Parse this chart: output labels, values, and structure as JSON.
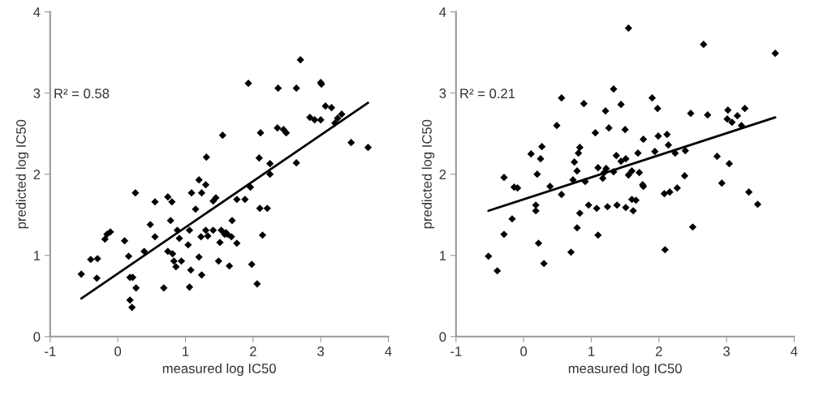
{
  "chart_data": [
    {
      "type": "scatter",
      "xlabel": "measured log IC50",
      "ylabel": "predicted log IC50",
      "xlim": [
        -1,
        4
      ],
      "ylim": [
        0,
        4
      ],
      "xticks": [
        -1,
        0,
        1,
        2,
        3,
        4
      ],
      "yticks": [
        0,
        1,
        2,
        3,
        4
      ],
      "grid": false,
      "annotations": [
        "R² = 0.58"
      ],
      "series": [
        {
          "marker": "diamond",
          "color": "#000000",
          "x": [
            -0.54,
            -0.4,
            -0.3,
            -0.31,
            -0.19,
            -0.16,
            -0.11,
            0.1,
            0.16,
            0.18,
            0.22,
            0.18,
            0.21,
            0.26,
            0.27,
            0.39,
            0.48,
            0.55,
            0.55,
            0.68,
            0.74,
            0.74,
            0.78,
            0.8,
            0.81,
            0.83,
            0.86,
            0.88,
            0.91,
            0.94,
            1.04,
            1.06,
            1.06,
            1.08,
            1.09,
            1.15,
            1.2,
            1.2,
            1.23,
            1.24,
            1.24,
            1.3,
            1.3,
            1.33,
            1.41,
            1.41,
            1.45,
            1.49,
            1.51,
            1.53,
            1.58,
            1.6,
            1.62,
            1.65,
            1.68,
            1.69,
            1.76,
            1.76,
            1.88,
            1.96,
            1.98,
            2.06,
            2.14,
            2.1,
            2.21,
            1.93,
            1.55,
            1.31,
            2.09,
            2.11,
            2.25,
            2.25,
            2.36,
            2.45,
            2.49,
            2.37,
            2.64,
            2.7,
            2.64,
            2.84,
            2.91,
            3.0,
            3.0,
            3.01,
            3.07,
            3.16,
            3.21,
            3.25,
            3.31,
            3.45,
            3.7
          ],
          "values": [
            0.77,
            0.95,
            0.96,
            0.72,
            1.2,
            1.26,
            1.29,
            1.18,
            0.99,
            0.73,
            0.73,
            0.45,
            0.36,
            1.77,
            0.6,
            1.05,
            1.38,
            1.66,
            1.23,
            0.6,
            1.72,
            1.05,
            1.43,
            1.66,
            1.02,
            0.93,
            0.86,
            1.31,
            1.21,
            0.93,
            1.13,
            1.31,
            0.61,
            0.82,
            1.77,
            1.57,
            0.98,
            1.93,
            1.23,
            1.77,
            0.76,
            1.87,
            1.31,
            1.24,
            1.31,
            1.67,
            1.71,
            0.93,
            1.16,
            1.31,
            1.26,
            1.28,
            1.26,
            0.87,
            1.23,
            1.43,
            1.69,
            1.15,
            1.69,
            1.84,
            0.89,
            0.65,
            1.25,
            1.58,
            1.58,
            3.12,
            2.48,
            2.21,
            2.2,
            2.51,
            2.13,
            2.0,
            2.57,
            2.55,
            2.51,
            3.06,
            3.06,
            3.41,
            2.14,
            2.7,
            2.67,
            2.67,
            3.13,
            3.11,
            2.84,
            2.82,
            2.63,
            2.69,
            2.74,
            2.39,
            2.33
          ]
        },
        {
          "type": "line",
          "color": "#000000",
          "x": [
            -0.54,
            3.7
          ],
          "values": [
            0.47,
            2.88
          ]
        }
      ]
    },
    {
      "type": "scatter",
      "xlabel": "measured log IC50",
      "ylabel": "predicted log IC50",
      "xlim": [
        -1,
        4
      ],
      "ylim": [
        0,
        4
      ],
      "xticks": [
        -1,
        0,
        1,
        2,
        3,
        4
      ],
      "yticks": [
        0,
        1,
        2,
        3,
        4
      ],
      "grid": false,
      "annotations": [
        "R² = 0.21"
      ],
      "series": [
        {
          "marker": "diamond",
          "color": "#000000",
          "x": [
            1.55,
            2.66,
            3.72,
            1.33,
            0.56,
            0.89,
            1.44,
            1.9,
            1.98,
            1.21,
            2.47,
            2.72,
            3.02,
            3.27,
            3.16,
            3.01,
            3.08,
            3.22,
            0.49,
            1.26,
            1.5,
            1.06,
            1.99,
            2.12,
            1.77,
            2.14,
            0.27,
            0.83,
            0.81,
            0.11,
            0.25,
            1.37,
            1.69,
            1.94,
            2.24,
            2.39,
            2.86,
            1.44,
            1.51,
            0.75,
            3.04,
            1.1,
            1.22,
            0.79,
            1.33,
            1.6,
            1.71,
            0.2,
            -0.29,
            1.19,
            1.55,
            2.38,
            2.93,
            0.73,
            0.91,
            1.17,
            1.76,
            0.39,
            -0.14,
            -0.09,
            0.56,
            0.18,
            0.18,
            -0.17,
            -0.29,
            -0.52,
            -0.39,
            0.22,
            0.3,
            0.7,
            0.79,
            0.83,
            0.96,
            1.08,
            1.1,
            1.24,
            1.38,
            1.51,
            1.62,
            1.66,
            1.6,
            1.77,
            2.08,
            2.16,
            2.27,
            2.09,
            2.5,
            3.33,
            3.46
          ],
          "values": [
            3.8,
            3.6,
            3.49,
            3.05,
            2.94,
            2.87,
            2.86,
            2.94,
            2.81,
            2.78,
            2.75,
            2.73,
            2.79,
            2.81,
            2.72,
            2.68,
            2.64,
            2.6,
            2.6,
            2.57,
            2.55,
            2.51,
            2.47,
            2.49,
            2.43,
            2.36,
            2.34,
            2.33,
            2.26,
            2.25,
            2.19,
            2.23,
            2.26,
            2.28,
            2.26,
            2.29,
            2.22,
            2.16,
            2.19,
            2.15,
            2.13,
            2.08,
            2.07,
            2.04,
            2.03,
            2.04,
            2.02,
            2.0,
            1.96,
            2.02,
            1.99,
            1.98,
            1.89,
            1.93,
            1.91,
            1.95,
            1.87,
            1.85,
            1.84,
            1.83,
            1.75,
            1.62,
            1.55,
            1.45,
            1.26,
            0.99,
            0.81,
            1.15,
            0.9,
            1.04,
            1.34,
            1.52,
            1.62,
            1.58,
            1.25,
            1.6,
            1.62,
            1.59,
            1.55,
            1.68,
            1.69,
            1.85,
            1.76,
            1.78,
            1.83,
            1.07,
            1.35,
            1.78,
            1.63
          ]
        },
        {
          "type": "line",
          "color": "#000000",
          "x": [
            -0.52,
            3.72
          ],
          "values": [
            1.55,
            2.7
          ]
        }
      ]
    }
  ]
}
